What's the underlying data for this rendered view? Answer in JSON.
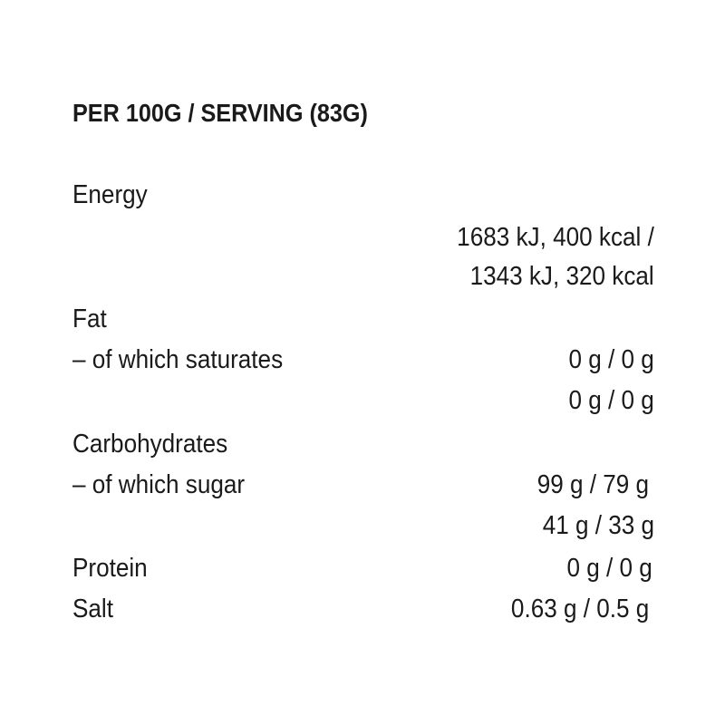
{
  "title": "PER 100G / SERVING (83G)",
  "rows": [
    {
      "label": "Energy"
    },
    {
      "value": "1683 kJ, 400 kcal /"
    },
    {
      "value": "1343 kJ, 320 kcal"
    },
    {
      "label": "Fat"
    },
    {
      "label": "– of which saturates",
      "value": "0 g / 0 g"
    },
    {
      "value": "0 g / 0 g"
    },
    {
      "label": "Carbohydrates"
    },
    {
      "label": "– of which sugar",
      "value": "99 g / 79 g"
    },
    {
      "value": "41 g / 33 g"
    },
    {
      "label": "Protein",
      "value": "0 g / 0 g"
    },
    {
      "label": "Salt",
      "value": "0.63 g / 0.5 g"
    }
  ]
}
